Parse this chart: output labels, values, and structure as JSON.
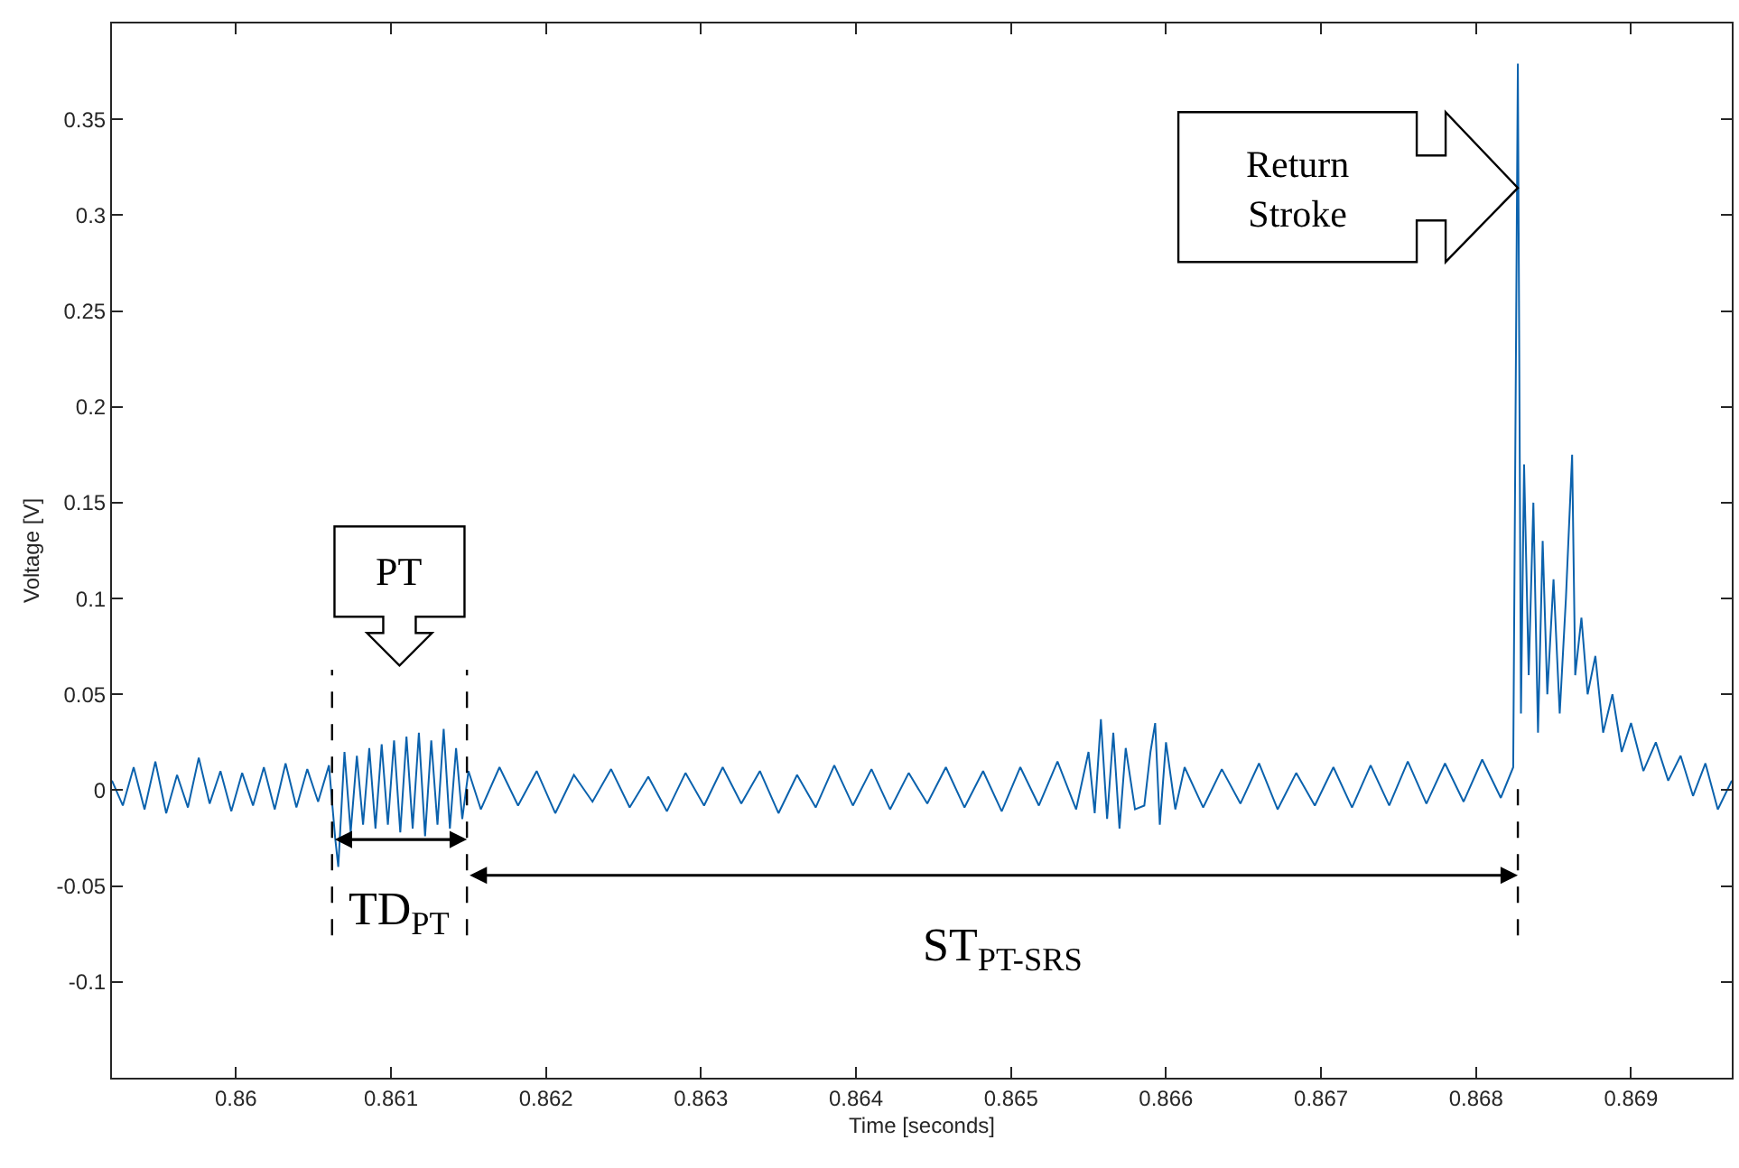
{
  "chart_data": {
    "type": "line",
    "xlabel": "Time [seconds]",
    "ylabel": "Voltage [V]",
    "xlim": [
      0.8592,
      0.86965
    ],
    "ylim": [
      -0.15,
      0.4
    ],
    "xticks": [
      0.86,
      0.861,
      0.862,
      0.863,
      0.864,
      0.865,
      0.866,
      0.867,
      0.868,
      0.869
    ],
    "yticks": [
      -0.1,
      -0.05,
      0,
      0.05,
      0.1,
      0.15,
      0.2,
      0.25,
      0.3,
      0.35
    ],
    "marker": "none",
    "line_style": "solid",
    "annotations": [
      "PT",
      "Return\nStroke",
      "TD$_{PT}$",
      "ST$_{PT-SRS}$"
    ],
    "ref_lines": [
      {
        "axis": "x",
        "value": 0.86062,
        "color": "#000000",
        "line_style": "dashed"
      },
      {
        "axis": "x",
        "value": 0.86149,
        "color": "#000000",
        "line_style": "dashed"
      },
      {
        "axis": "x",
        "value": 0.86827,
        "color": "#000000",
        "line_style": "dashed"
      }
    ],
    "series": [
      {
        "color": "#0b62ad",
        "x": [
          0.8592,
          0.85927,
          0.85934,
          0.85941,
          0.85948,
          0.85955,
          0.85962,
          0.85969,
          0.85976,
          0.85983,
          0.8599,
          0.85997,
          0.86004,
          0.86011,
          0.86018,
          0.86025,
          0.86032,
          0.86039,
          0.86046,
          0.86053,
          0.8606,
          0.86064,
          0.86066,
          0.8607,
          0.86074,
          0.86078,
          0.86082,
          0.86086,
          0.8609,
          0.86094,
          0.86098,
          0.86102,
          0.86106,
          0.8611,
          0.86114,
          0.86118,
          0.86122,
          0.86126,
          0.8613,
          0.86134,
          0.86138,
          0.86142,
          0.86146,
          0.8615,
          0.86158,
          0.8617,
          0.86182,
          0.86194,
          0.86206,
          0.86218,
          0.8623,
          0.86242,
          0.86254,
          0.86266,
          0.86278,
          0.8629,
          0.86302,
          0.86314,
          0.86326,
          0.86338,
          0.8635,
          0.86362,
          0.86374,
          0.86386,
          0.86398,
          0.8641,
          0.86422,
          0.86434,
          0.86446,
          0.86458,
          0.8647,
          0.86482,
          0.86494,
          0.86506,
          0.86518,
          0.8653,
          0.86542,
          0.8655,
          0.86554,
          0.86558,
          0.86562,
          0.86566,
          0.8657,
          0.86574,
          0.8658,
          0.86586,
          0.8659,
          0.86593,
          0.86596,
          0.866,
          0.86606,
          0.86612,
          0.86624,
          0.86636,
          0.86648,
          0.8666,
          0.86672,
          0.86684,
          0.86696,
          0.86708,
          0.8672,
          0.86732,
          0.86744,
          0.86756,
          0.86768,
          0.8678,
          0.86792,
          0.86804,
          0.86816,
          0.86824,
          0.86827,
          0.86829,
          0.86831,
          0.86834,
          0.86837,
          0.8684,
          0.86843,
          0.86846,
          0.8685,
          0.86854,
          0.86858,
          0.86862,
          0.86864,
          0.86868,
          0.86872,
          0.86877,
          0.86882,
          0.86888,
          0.86894,
          0.869,
          0.86908,
          0.86916,
          0.86924,
          0.86932,
          0.8694,
          0.86948,
          0.86956,
          0.86965
        ],
        "values": [
          0.005,
          -0.008,
          0.012,
          -0.01,
          0.015,
          -0.012,
          0.008,
          -0.009,
          0.017,
          -0.007,
          0.01,
          -0.011,
          0.009,
          -0.008,
          0.012,
          -0.01,
          0.014,
          -0.009,
          0.011,
          -0.006,
          0.013,
          -0.025,
          -0.04,
          0.02,
          -0.022,
          0.018,
          -0.018,
          0.022,
          -0.02,
          0.024,
          -0.018,
          0.026,
          -0.022,
          0.028,
          -0.02,
          0.03,
          -0.024,
          0.026,
          -0.018,
          0.032,
          -0.02,
          0.022,
          -0.015,
          0.01,
          -0.01,
          0.012,
          -0.008,
          0.01,
          -0.012,
          0.008,
          -0.006,
          0.011,
          -0.009,
          0.007,
          -0.011,
          0.009,
          -0.008,
          0.012,
          -0.007,
          0.01,
          -0.012,
          0.008,
          -0.009,
          0.013,
          -0.008,
          0.011,
          -0.01,
          0.009,
          -0.007,
          0.012,
          -0.009,
          0.01,
          -0.011,
          0.012,
          -0.008,
          0.015,
          -0.01,
          0.02,
          -0.012,
          0.037,
          -0.015,
          0.03,
          -0.02,
          0.022,
          -0.01,
          -0.008,
          0.02,
          0.035,
          -0.018,
          0.025,
          -0.01,
          0.012,
          -0.009,
          0.011,
          -0.007,
          0.014,
          -0.01,
          0.009,
          -0.008,
          0.012,
          -0.009,
          0.013,
          -0.008,
          0.015,
          -0.007,
          0.014,
          -0.006,
          0.016,
          -0.004,
          0.012,
          0.379,
          0.04,
          0.17,
          0.06,
          0.15,
          0.03,
          0.13,
          0.05,
          0.11,
          0.04,
          0.1,
          0.175,
          0.06,
          0.09,
          0.05,
          0.07,
          0.03,
          0.05,
          0.02,
          0.035,
          0.01,
          0.025,
          0.005,
          0.018,
          -0.003,
          0.014,
          -0.01,
          0.005
        ]
      }
    ]
  }
}
